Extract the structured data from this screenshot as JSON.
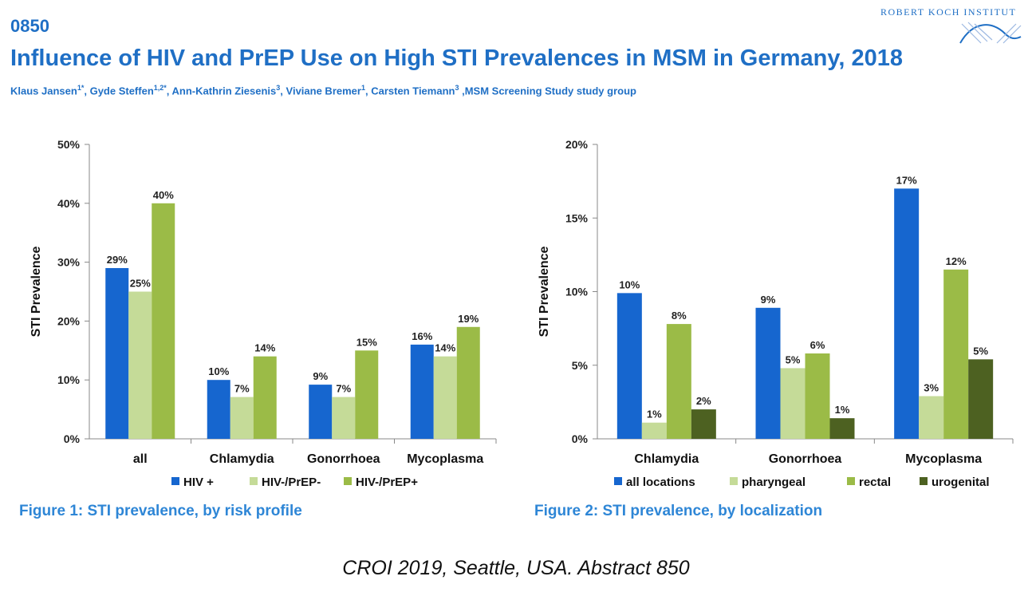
{
  "header": {
    "abstract_id": "0850",
    "title": "Influence of HIV and PrEP Use on High STI Prevalences in MSM in Germany, 2018",
    "authors": [
      {
        "name": "Klaus Jansen",
        "sup": "1*"
      },
      {
        "name": "Gyde Steffen",
        "sup": "1,2*"
      },
      {
        "name": "Ann-Kathrin Ziesenis",
        "sup": "3"
      },
      {
        "name": "Viviane Bremer",
        "sup": "1"
      },
      {
        "name": "Carsten Tiemann",
        "sup": "3"
      },
      {
        "name": "MSM Screening Study study group",
        "sup": ""
      }
    ],
    "logo_text": "ROBERT KOCH INSTITUT"
  },
  "colors": {
    "title_blue": "#1F6FC5",
    "caption_blue": "#2E86D6",
    "series_blue": "#1666CF",
    "series_light_green": "#C5DB98",
    "series_green": "#9BBB47",
    "series_dark_green": "#4D6121"
  },
  "captions": {
    "fig1": "Figure 1: STI prevalence, by risk profile",
    "fig2": "Figure 2: STI prevalence, by localization"
  },
  "footer": "CROI 2019, Seattle, USA. Abstract 850",
  "chart_data": [
    {
      "type": "bar",
      "title": "",
      "ylabel": "STI Prevalence",
      "xlabel": "",
      "ylim": [
        0,
        50
      ],
      "yticks": [
        0,
        10,
        20,
        30,
        40,
        50
      ],
      "ytick_labels": [
        "0%",
        "10%",
        "20%",
        "30%",
        "40%",
        "50%"
      ],
      "categories": [
        "all",
        "Chlamydia",
        "Gonorrhoea",
        "Mycoplasma"
      ],
      "legend_position": "bottom",
      "grid": false,
      "series": [
        {
          "name": "HIV +",
          "color": "#1666CF",
          "values": [
            29,
            10,
            9.2,
            16
          ],
          "labels": [
            "29%",
            "10%",
            "9%",
            "16%"
          ]
        },
        {
          "name": "HIV-/PrEP-",
          "color": "#C5DB98",
          "values": [
            25,
            7.1,
            7.1,
            14
          ],
          "labels": [
            "25%",
            "7%",
            "7%",
            "14%"
          ]
        },
        {
          "name": "HIV-/PrEP+",
          "color": "#9BBB47",
          "values": [
            40,
            14,
            15,
            19
          ],
          "labels": [
            "40%",
            "14%",
            "15%",
            "19%"
          ]
        }
      ]
    },
    {
      "type": "bar",
      "title": "",
      "ylabel": "STI Prevalence",
      "xlabel": "",
      "ylim": [
        0,
        20
      ],
      "yticks": [
        0,
        5,
        10,
        15,
        20
      ],
      "ytick_labels": [
        "0%",
        "5%",
        "10%",
        "15%",
        "20%"
      ],
      "categories": [
        "Chlamydia",
        "Gonorrhoea",
        "Mycoplasma"
      ],
      "legend_position": "bottom",
      "grid": false,
      "series": [
        {
          "name": "all locations",
          "color": "#1666CF",
          "values": [
            9.9,
            8.9,
            17
          ],
          "labels": [
            "10%",
            "9%",
            "17%"
          ]
        },
        {
          "name": "pharyngeal",
          "color": "#C5DB98",
          "values": [
            1.1,
            4.8,
            2.9
          ],
          "labels": [
            "1%",
            "5%",
            "3%"
          ]
        },
        {
          "name": "rectal",
          "color": "#9BBB47",
          "values": [
            7.8,
            5.8,
            11.5
          ],
          "labels": [
            "8%",
            "6%",
            "12%"
          ]
        },
        {
          "name": "urogenital",
          "color": "#4D6121",
          "values": [
            2.0,
            1.4,
            5.4
          ],
          "labels": [
            "2%",
            "1%",
            "5%"
          ]
        }
      ]
    }
  ]
}
